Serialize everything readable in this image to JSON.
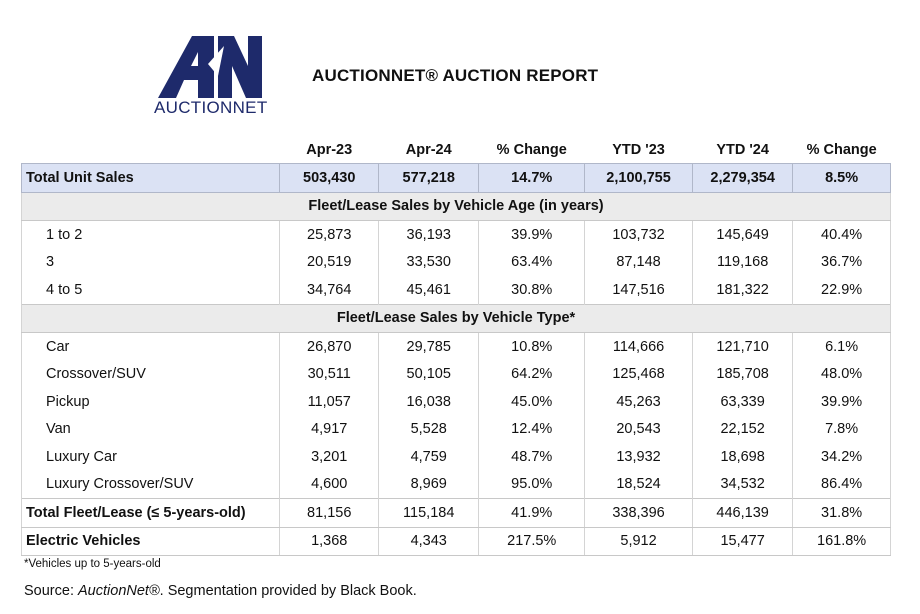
{
  "logo": {
    "text": "AUCTIONNET",
    "color": "#1e2a6b"
  },
  "title": "AUCTIONNET® AUCTION REPORT",
  "columns": [
    "Apr-23",
    "Apr-24",
    "% Change",
    "YTD '23",
    "YTD '24",
    "% Change"
  ],
  "total_unit_sales": {
    "label": "Total Unit Sales",
    "values": [
      "503,430",
      "577,218",
      "14.7%",
      "2,100,755",
      "2,279,354",
      "8.5%"
    ]
  },
  "age_section": {
    "heading": "Fleet/Lease Sales by Vehicle Age (in years)",
    "rows": [
      {
        "label": "1 to 2",
        "values": [
          "25,873",
          "36,193",
          "39.9%",
          "103,732",
          "145,649",
          "40.4%"
        ]
      },
      {
        "label": "3",
        "values": [
          "20,519",
          "33,530",
          "63.4%",
          "87,148",
          "119,168",
          "36.7%"
        ]
      },
      {
        "label": "4 to 5",
        "values": [
          "34,764",
          "45,461",
          "30.8%",
          "147,516",
          "181,322",
          "22.9%"
        ]
      }
    ]
  },
  "type_section": {
    "heading": "Fleet/Lease Sales by Vehicle Type*",
    "rows": [
      {
        "label": "Car",
        "values": [
          "26,870",
          "29,785",
          "10.8%",
          "114,666",
          "121,710",
          "6.1%"
        ]
      },
      {
        "label": "Crossover/SUV",
        "values": [
          "30,511",
          "50,105",
          "64.2%",
          "125,468",
          "185,708",
          "48.0%"
        ]
      },
      {
        "label": "Pickup",
        "values": [
          "11,057",
          "16,038",
          "45.0%",
          "45,263",
          "63,339",
          "39.9%"
        ]
      },
      {
        "label": "Van",
        "values": [
          "4,917",
          "5,528",
          "12.4%",
          "20,543",
          "22,152",
          "7.8%"
        ]
      },
      {
        "label": "Luxury Car",
        "values": [
          "3,201",
          "4,759",
          "48.7%",
          "13,932",
          "18,698",
          "34.2%"
        ]
      },
      {
        "label": "Luxury Crossover/SUV",
        "values": [
          "4,600",
          "8,969",
          "95.0%",
          "18,524",
          "34,532",
          "86.4%"
        ]
      }
    ]
  },
  "total_fleet": {
    "label": "Total Fleet/Lease (≤ 5-years-old)",
    "values": [
      "81,156",
      "115,184",
      "41.9%",
      "338,396",
      "446,139",
      "31.8%"
    ]
  },
  "electric": {
    "label": "Electric Vehicles",
    "values": [
      "1,368",
      "4,343",
      "217.5%",
      "5,912",
      "15,477",
      "161.8%"
    ]
  },
  "footnote": "*Vehicles up to 5-years-old",
  "source": {
    "prefix": "Source:",
    "name": "AuctionNet®",
    "suffix": ". Segmentation provided by Black Book."
  },
  "colors": {
    "total_row_bg": "#dbe2f4",
    "section_bg": "#ebebeb",
    "brand": "#1e2a6b"
  }
}
